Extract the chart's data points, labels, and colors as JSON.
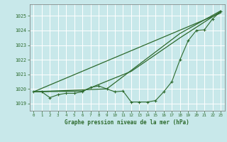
{
  "title": "Graphe pression niveau de la mer (hPa)",
  "bg_color": "#c8e8ea",
  "grid_color": "#ffffff",
  "line_color": "#2d6a2d",
  "xlim": [
    -0.5,
    23.5
  ],
  "ylim": [
    1018.5,
    1025.8
  ],
  "yticks": [
    1019,
    1020,
    1021,
    1022,
    1023,
    1024,
    1025
  ],
  "xticks": [
    0,
    1,
    2,
    3,
    4,
    5,
    6,
    7,
    8,
    9,
    10,
    11,
    12,
    13,
    14,
    15,
    16,
    17,
    18,
    19,
    20,
    21,
    22,
    23
  ],
  "series1_x": [
    0,
    1,
    2,
    3,
    4,
    5,
    6,
    7,
    8,
    9,
    10,
    11,
    12,
    13,
    14,
    15,
    16,
    17,
    18,
    19,
    20,
    21,
    22,
    23
  ],
  "series1_y": [
    1019.8,
    1019.8,
    1019.4,
    1019.6,
    1019.7,
    1019.7,
    1019.8,
    1020.1,
    1020.2,
    1020.0,
    1019.8,
    1019.85,
    1019.1,
    1019.1,
    1019.1,
    1019.2,
    1019.8,
    1020.5,
    1022.0,
    1023.3,
    1024.0,
    1024.05,
    1024.8,
    1025.3
  ],
  "series2_x": [
    0,
    23
  ],
  "series2_y": [
    1019.8,
    1025.2
  ],
  "series3_x": [
    0,
    9,
    18,
    23
  ],
  "series3_y": [
    1019.8,
    1020.0,
    1023.8,
    1025.35
  ],
  "series4_x": [
    0,
    6,
    12,
    18,
    23
  ],
  "series4_y": [
    1019.8,
    1019.85,
    1021.2,
    1023.5,
    1025.3
  ]
}
